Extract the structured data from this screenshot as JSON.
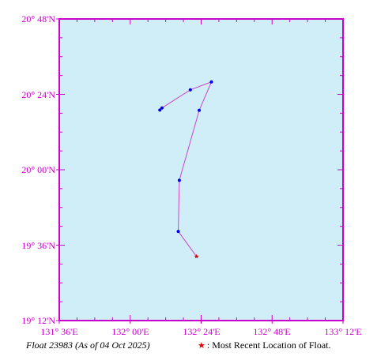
{
  "map": {
    "lon_labels": [
      "131° 36'E",
      "132° 00'E",
      "132° 24'E",
      "132° 48'E",
      "133° 12'E"
    ],
    "lat_labels": [
      "20° 48'N",
      "20° 24'N",
      "20° 00'N",
      "19° 36'N",
      "19° 12'N"
    ],
    "lon_range": [
      131.6,
      133.2
    ],
    "lat_range": [
      19.2,
      20.8
    ],
    "ocean_color": "#d0eef8",
    "frame_color": "#cc00cc",
    "track_color": "#cc44cc",
    "point_color": "#0000ee",
    "latest_color": "#e00000",
    "track": [
      {
        "lon": 132.167,
        "lat": 20.317
      },
      {
        "lon": 132.179,
        "lat": 20.328
      },
      {
        "lon": 132.339,
        "lat": 20.424
      },
      {
        "lon": 132.458,
        "lat": 20.466
      },
      {
        "lon": 132.389,
        "lat": 20.315
      },
      {
        "lon": 132.277,
        "lat": 19.944
      },
      {
        "lon": 132.271,
        "lat": 19.673
      },
      {
        "lon": 132.374,
        "lat": 19.54
      }
    ]
  },
  "caption": {
    "title": "Float 23983 (As of 04 Oct 2025)",
    "legend_symbol": "★",
    "legend_text": ": Most Recent Location of Float."
  }
}
